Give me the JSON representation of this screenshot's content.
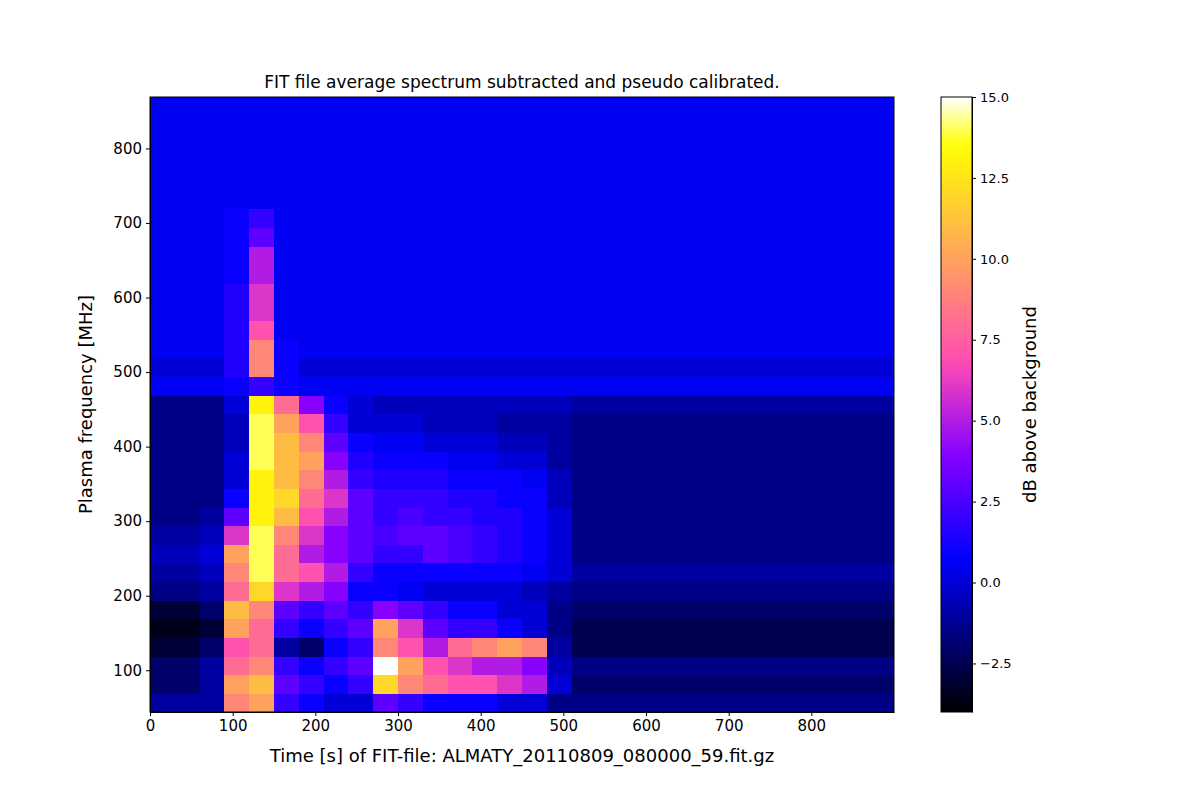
{
  "chart_data": {
    "type": "heatmap",
    "title": "FIT file average spectrum subtracted and pseudo calibrated.",
    "x_label": "Time [s] of FIT-file: ALMATY_20110809_080000_59.fit.gz",
    "y_label": "Plasma frequency [MHz]",
    "xlim": [
      0,
      900
    ],
    "ylim": [
      44,
      869
    ],
    "xticks": [
      0,
      100,
      200,
      300,
      400,
      500,
      600,
      700,
      800
    ],
    "yticks": [
      100,
      200,
      300,
      400,
      500,
      600,
      700,
      800
    ],
    "x_edges": [
      0,
      30,
      60,
      90,
      120,
      150,
      180,
      210,
      240,
      270,
      300,
      330,
      360,
      390,
      420,
      450,
      480,
      510,
      540,
      570,
      600,
      630,
      660,
      690,
      720,
      750,
      780,
      810,
      840,
      870,
      900
    ],
    "y_edges": [
      44,
      69,
      94,
      119,
      144,
      169,
      194,
      219,
      244,
      269,
      294,
      319,
      344,
      369,
      394,
      419,
      444,
      469,
      494,
      519,
      544,
      569,
      594,
      619,
      644,
      669,
      694,
      719,
      744,
      769,
      794,
      819,
      844,
      869
    ],
    "z": [
      [
        -1,
        -1,
        -1,
        9,
        10,
        2,
        1,
        0,
        0,
        3,
        2,
        1,
        1,
        1,
        0,
        0,
        -1.5,
        -1.5,
        -1.5,
        -1.5,
        -1.5,
        -1.5,
        -1.5,
        -1.5,
        -1.5,
        -1.5,
        -1.5,
        -1.5,
        -1.5,
        -1.5
      ],
      [
        -2,
        -2,
        -1,
        10,
        11,
        3,
        2,
        1,
        2,
        12,
        9,
        8,
        7,
        7,
        6,
        5,
        0,
        -2,
        -2,
        -2,
        -2,
        -2,
        -2,
        -2,
        -2,
        -2,
        -2,
        -2,
        -2,
        -2
      ],
      [
        -2,
        -2,
        -1,
        8,
        9,
        2,
        1,
        2,
        3,
        15,
        10,
        7,
        6,
        5,
        5,
        4,
        -0.5,
        -1.5,
        -1.5,
        -1.5,
        -1.5,
        -1.5,
        -1.5,
        -1.5,
        -1.5,
        -1.5,
        -1.5,
        -1.5,
        -1.5,
        -1.5
      ],
      [
        -3,
        -3,
        -2,
        7,
        8,
        -1,
        -2,
        1,
        2,
        9,
        7,
        5,
        8,
        9,
        10,
        9,
        -1,
        -2.5,
        -2.5,
        -2.5,
        -2.5,
        -2.5,
        -2.5,
        -2.5,
        -2.5,
        -2.5,
        -2.5,
        -2.5,
        -2.5,
        -2.5
      ],
      [
        -3.5,
        -3.5,
        -3,
        10,
        8,
        2,
        1,
        2,
        3,
        10,
        6,
        3,
        2,
        2,
        1,
        0,
        -1.5,
        -2.5,
        -2.5,
        -2.5,
        -2.5,
        -2.5,
        -2.5,
        -2.5,
        -2.5,
        -2.5,
        -2.5,
        -2.5,
        -2.5,
        -2.5
      ],
      [
        -3,
        -3,
        -2,
        11,
        9,
        3,
        2,
        3,
        2,
        4,
        3,
        2,
        1,
        1,
        0,
        0,
        -1.5,
        -2,
        -2,
        -2,
        -2,
        -2,
        -2,
        -2,
        -2,
        -2,
        -2,
        -2,
        -2,
        -2
      ],
      [
        -1.5,
        -1.5,
        -1,
        8,
        12,
        6,
        5,
        4,
        1,
        1,
        0.5,
        0,
        0,
        0,
        0,
        -0.5,
        -1,
        -1.5,
        -1.5,
        -1.5,
        -1.5,
        -1.5,
        -1.5,
        -1.5,
        -1.5,
        -1.5,
        -1.5,
        -1.5,
        -1.5,
        -1.5
      ],
      [
        -1,
        -1,
        -0.5,
        9,
        14,
        8,
        7,
        5,
        2,
        1,
        1,
        1,
        1,
        1,
        1,
        0.5,
        0,
        -1,
        -1,
        -1,
        -1,
        -1,
        -1,
        -1,
        -1,
        -1,
        -1,
        -1,
        -1,
        -1
      ],
      [
        -0.5,
        -0.5,
        0,
        10,
        14,
        8,
        5,
        4,
        3,
        2,
        2,
        3,
        2.5,
        2,
        1.5,
        1,
        0,
        -1.5,
        -1.5,
        -1.5,
        -1.5,
        -1.5,
        -1.5,
        -1.5,
        -1.5,
        -1.5,
        -1.5,
        -1.5,
        -1.5,
        -1.5
      ],
      [
        -1,
        -1,
        -0.5,
        6,
        14,
        9,
        6,
        4,
        3,
        2.5,
        3,
        3,
        2.5,
        2,
        1.5,
        1,
        0,
        -1.5,
        -1.5,
        -1.5,
        -1.5,
        -1.5,
        -1.5,
        -1.5,
        -1.5,
        -1.5,
        -1.5,
        -1.5,
        -1.5,
        -1.5
      ],
      [
        -1.5,
        -1.5,
        -1,
        3,
        13,
        11,
        7,
        5,
        3,
        2,
        2.5,
        2,
        2,
        1.5,
        1.5,
        1,
        0,
        -1.5,
        -1.5,
        -1.5,
        -1.5,
        -1.5,
        -1.5,
        -1.5,
        -1.5,
        -1.5,
        -1.5,
        -1.5,
        -1.5,
        -1.5
      ],
      [
        -1.5,
        -1.5,
        -1.5,
        1,
        13,
        12,
        8,
        6,
        3,
        2,
        2,
        2,
        1.5,
        1.5,
        1,
        1,
        -0.5,
        -1.5,
        -1.5,
        -1.5,
        -1.5,
        -1.5,
        -1.5,
        -1.5,
        -1.5,
        -1.5,
        -1.5,
        -1.5,
        -1.5,
        -1.5
      ],
      [
        -1.5,
        -1.5,
        -1.5,
        0,
        13,
        11,
        9,
        5,
        2,
        1.5,
        1.5,
        1.5,
        1,
        1,
        1,
        0.5,
        -0.5,
        -1.5,
        -1.5,
        -1.5,
        -1.5,
        -1.5,
        -1.5,
        -1.5,
        -1.5,
        -1.5,
        -1.5,
        -1.5,
        -1.5,
        -1.5
      ],
      [
        -1.5,
        -1.5,
        -1.5,
        0,
        14,
        11,
        10,
        4,
        1.5,
        1,
        1,
        1,
        0.5,
        0.5,
        0,
        0,
        -1,
        -1.5,
        -1.5,
        -1.5,
        -1.5,
        -1.5,
        -1.5,
        -1.5,
        -1.5,
        -1.5,
        -1.5,
        -1.5,
        -1.5,
        -1.5
      ],
      [
        -1.5,
        -1.5,
        -1.5,
        -0.5,
        14,
        11,
        9,
        3,
        1,
        0.5,
        0.5,
        0,
        0,
        0,
        -0.5,
        -0.5,
        -1,
        -1.5,
        -1.5,
        -1.5,
        -1.5,
        -1.5,
        -1.5,
        -1.5,
        -1.5,
        -1.5,
        -1.5,
        -1.5,
        -1.5,
        -1.5
      ],
      [
        -1.5,
        -1.5,
        -1.5,
        -0.5,
        14,
        10,
        7,
        2,
        0,
        0,
        0,
        -0.5,
        -0.5,
        -0.5,
        -1,
        -1,
        -1,
        -1.5,
        -1.5,
        -1.5,
        -1.5,
        -1.5,
        -1.5,
        -1.5,
        -1.5,
        -1.5,
        -1.5,
        -1.5,
        -1.5,
        -1.5
      ],
      [
        -1.5,
        -1.5,
        -1.5,
        0,
        13,
        8,
        4,
        1,
        0,
        -0.5,
        -0.5,
        -0.5,
        -0.5,
        -0.5,
        -0.5,
        -0.5,
        -0.5,
        -1,
        -1,
        -1,
        -1,
        -1,
        -1,
        -1,
        -1,
        -1,
        -1,
        -1,
        -1,
        -1
      ],
      [
        0.5,
        0.5,
        0.5,
        1,
        2,
        1,
        0.5,
        0.5,
        0.5,
        0.5,
        0.5,
        0.5,
        0.5,
        0.5,
        0.5,
        0.5,
        0.5,
        0.5,
        0.5,
        0.5,
        0.5,
        0.5,
        0.5,
        0.5,
        0.5,
        0.5,
        0.5,
        0.5,
        0.5,
        0.5
      ],
      [
        0,
        0,
        0,
        1.5,
        9,
        1,
        0,
        0,
        0,
        0,
        0,
        0,
        0,
        0,
        0,
        0,
        0,
        0,
        0,
        0,
        0,
        0,
        0,
        0,
        0,
        0,
        0,
        0,
        0,
        0
      ],
      [
        0.5,
        0.5,
        0.5,
        1.5,
        9,
        1,
        0.5,
        0.5,
        0.5,
        0.5,
        0.5,
        0.5,
        0.5,
        0.5,
        0.5,
        0.5,
        0.5,
        0.5,
        0.5,
        0.5,
        0.5,
        0.5,
        0.5,
        0.5,
        0.5,
        0.5,
        0.5,
        0.5,
        0.5,
        0.5
      ],
      [
        0.5,
        0.5,
        0.5,
        1.5,
        7,
        0.5,
        0.5,
        0.5,
        0.5,
        0.5,
        0.5,
        0.5,
        0.5,
        0.5,
        0.5,
        0.5,
        0.5,
        0.5,
        0.5,
        0.5,
        0.5,
        0.5,
        0.5,
        0.5,
        0.5,
        0.5,
        0.5,
        0.5,
        0.5,
        0.5
      ],
      [
        0.5,
        0.5,
        0.5,
        1.5,
        6,
        0.5,
        0.5,
        0.5,
        0.5,
        0.5,
        0.5,
        0.5,
        0.5,
        0.5,
        0.5,
        0.5,
        0.5,
        0.5,
        0.5,
        0.5,
        0.5,
        0.5,
        0.5,
        0.5,
        0.5,
        0.5,
        0.5,
        0.5,
        0.5,
        0.5
      ],
      [
        0.5,
        0.5,
        0.5,
        1.5,
        6,
        0.5,
        0.5,
        0.5,
        0.5,
        0.5,
        0.5,
        0.5,
        0.5,
        0.5,
        0.5,
        0.5,
        0.5,
        0.5,
        0.5,
        0.5,
        0.5,
        0.5,
        0.5,
        0.5,
        0.5,
        0.5,
        0.5,
        0.5,
        0.5,
        0.5
      ],
      [
        0.5,
        0.5,
        0.5,
        1,
        5,
        0.5,
        0.5,
        0.5,
        0.5,
        0.5,
        0.5,
        0.5,
        0.5,
        0.5,
        0.5,
        0.5,
        0.5,
        0.5,
        0.5,
        0.5,
        0.5,
        0.5,
        0.5,
        0.5,
        0.5,
        0.5,
        0.5,
        0.5,
        0.5,
        0.5
      ],
      [
        0.5,
        0.5,
        0.5,
        1,
        5,
        0.5,
        0.5,
        0.5,
        0.5,
        0.5,
        0.5,
        0.5,
        0.5,
        0.5,
        0.5,
        0.5,
        0.5,
        0.5,
        0.5,
        0.5,
        0.5,
        0.5,
        0.5,
        0.5,
        0.5,
        0.5,
        0.5,
        0.5,
        0.5,
        0.5
      ],
      [
        0.5,
        0.5,
        0.5,
        1,
        3,
        0.5,
        0.5,
        0.5,
        0.5,
        0.5,
        0.5,
        0.5,
        0.5,
        0.5,
        0.5,
        0.5,
        0.5,
        0.5,
        0.5,
        0.5,
        0.5,
        0.5,
        0.5,
        0.5,
        0.5,
        0.5,
        0.5,
        0.5,
        0.5,
        0.5
      ],
      [
        0.5,
        0.5,
        0.5,
        1,
        2,
        0.5,
        0.5,
        0.5,
        0.5,
        0.5,
        0.5,
        0.5,
        0.5,
        0.5,
        0.5,
        0.5,
        0.5,
        0.5,
        0.5,
        0.5,
        0.5,
        0.5,
        0.5,
        0.5,
        0.5,
        0.5,
        0.5,
        0.5,
        0.5,
        0.5
      ],
      [
        0.5,
        0.5,
        0.5,
        0.5,
        0.5,
        0.5,
        0.5,
        0.5,
        0.5,
        0.5,
        0.5,
        0.5,
        0.5,
        0.5,
        0.5,
        0.5,
        0.5,
        0.5,
        0.5,
        0.5,
        0.5,
        0.5,
        0.5,
        0.5,
        0.5,
        0.5,
        0.5,
        0.5,
        0.5,
        0.5
      ],
      [
        0.5,
        0.5,
        0.5,
        0.5,
        0.5,
        0.5,
        0.5,
        0.5,
        0.5,
        0.5,
        0.5,
        0.5,
        0.5,
        0.5,
        0.5,
        0.5,
        0.5,
        0.5,
        0.5,
        0.5,
        0.5,
        0.5,
        0.5,
        0.5,
        0.5,
        0.5,
        0.5,
        0.5,
        0.5,
        0.5
      ],
      [
        0.5,
        0.5,
        0.5,
        0.5,
        0.5,
        0.5,
        0.5,
        0.5,
        0.5,
        0.5,
        0.5,
        0.5,
        0.5,
        0.5,
        0.5,
        0.5,
        0.5,
        0.5,
        0.5,
        0.5,
        0.5,
        0.5,
        0.5,
        0.5,
        0.5,
        0.5,
        0.5,
        0.5,
        0.5,
        0.5
      ],
      [
        0.5,
        0.5,
        0.5,
        0.5,
        0.5,
        0.5,
        0.5,
        0.5,
        0.5,
        0.5,
        0.5,
        0.5,
        0.5,
        0.5,
        0.5,
        0.5,
        0.5,
        0.5,
        0.5,
        0.5,
        0.5,
        0.5,
        0.5,
        0.5,
        0.5,
        0.5,
        0.5,
        0.5,
        0.5,
        0.5
      ],
      [
        0.5,
        0.5,
        0.5,
        0.5,
        0.5,
        0.5,
        0.5,
        0.5,
        0.5,
        0.5,
        0.5,
        0.5,
        0.5,
        0.5,
        0.5,
        0.5,
        0.5,
        0.5,
        0.5,
        0.5,
        0.5,
        0.5,
        0.5,
        0.5,
        0.5,
        0.5,
        0.5,
        0.5,
        0.5,
        0.5
      ],
      [
        0.5,
        0.5,
        0.5,
        0.5,
        0.5,
        0.5,
        0.5,
        0.5,
        0.5,
        0.5,
        0.5,
        0.5,
        0.5,
        0.5,
        0.5,
        0.5,
        0.5,
        0.5,
        0.5,
        0.5,
        0.5,
        0.5,
        0.5,
        0.5,
        0.5,
        0.5,
        0.5,
        0.5,
        0.5,
        0.5
      ]
    ],
    "zlim": [
      -4,
      15
    ],
    "zticks": [
      {
        "value": -2.5,
        "label": "−2.5"
      },
      {
        "value": 0,
        "label": "0.0"
      },
      {
        "value": 2.5,
        "label": "2.5"
      },
      {
        "value": 5,
        "label": "5.0"
      },
      {
        "value": 7.5,
        "label": "7.5"
      },
      {
        "value": 10,
        "label": "10.0"
      },
      {
        "value": 12.5,
        "label": "12.5"
      },
      {
        "value": 15,
        "label": "15.0"
      }
    ],
    "colorbar_label": "dB above background"
  }
}
